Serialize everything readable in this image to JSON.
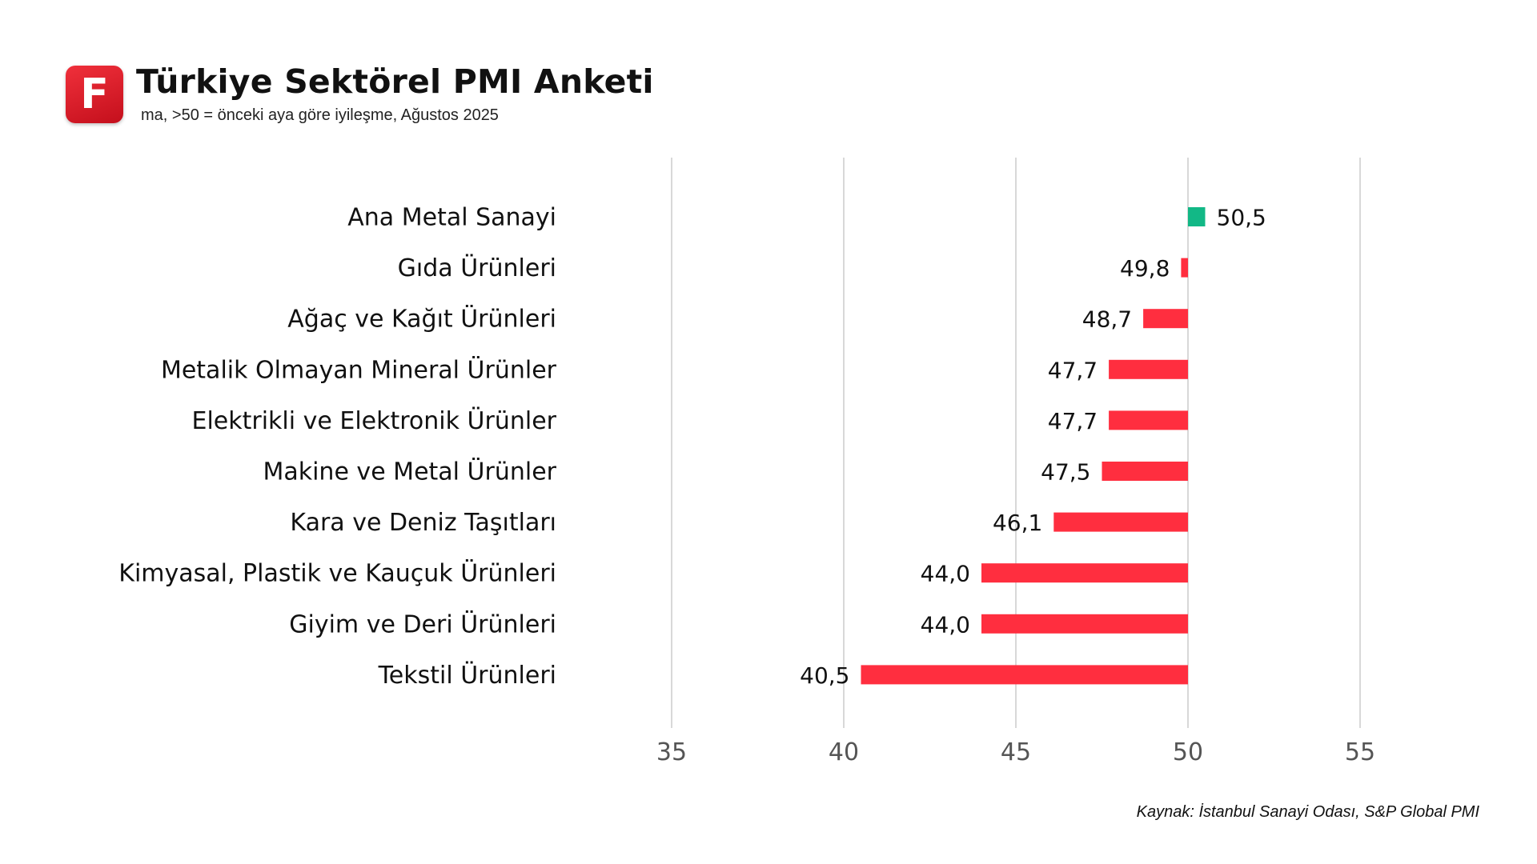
{
  "header": {
    "logo_letter": "F",
    "title": "Türkiye Sektörel PMI Anketi",
    "subtitle": "ma, >50 = önceki aya göre iyileşme, Ağustos 2025"
  },
  "footer": {
    "source": "Kaynak: İstanbul Sanayi Odası, S&P Global PMI"
  },
  "colors": {
    "positive": "#12b886",
    "negative": "#ff2e3f",
    "grid": "#cccccc",
    "tick_text": "#555555"
  },
  "chart_data": {
    "type": "bar",
    "orientation": "horizontal",
    "baseline": 50,
    "categories": [
      "Ana Metal Sanayi",
      "Gıda Ürünleri",
      "Ağaç ve Kağıt Ürünleri",
      "Metalik Olmayan Mineral Ürünler",
      "Elektrikli ve Elektronik Ürünler",
      "Makine ve Metal Ürünler",
      "Kara ve Deniz Taşıtları",
      "Kimyasal, Plastik ve Kauçuk Ürünleri",
      "Giyim ve Deri Ürünleri",
      "Tekstil Ürünleri"
    ],
    "values": [
      50.5,
      49.8,
      48.7,
      47.7,
      47.7,
      47.5,
      46.1,
      44.0,
      44.0,
      40.5
    ],
    "value_labels": [
      "50,5",
      "49,8",
      "48,7",
      "47,7",
      "47,7",
      "47,5",
      "46,1",
      "44,0",
      "44,0",
      "40,5"
    ],
    "xlim": [
      35,
      55
    ],
    "xticks": [
      35,
      40,
      45,
      50,
      55
    ],
    "xtick_labels": [
      "35",
      "40",
      "45",
      "50",
      "55"
    ],
    "grid": true,
    "legend": "none"
  }
}
